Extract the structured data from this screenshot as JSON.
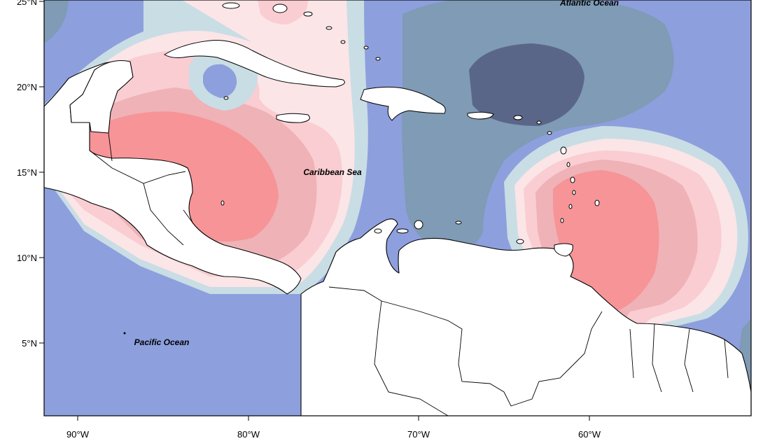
{
  "map": {
    "labels": {
      "atlantic": "Atlantic Ocean",
      "caribbean": "Caribbean Sea",
      "pacific": "Pacific Ocean"
    },
    "lat_ticks": [
      "25°N",
      "20°N",
      "15°N",
      "10°N",
      "5°N"
    ],
    "lon_ticks": [
      "90°W",
      "80°W",
      "70°W",
      "60°W"
    ],
    "extent": {
      "lon_min": -92,
      "lon_max": -51,
      "lat_min": 1,
      "lat_max": 25
    },
    "palette": {
      "deep_blue": "#5a6688",
      "slate": "#7f9bb5",
      "periwinkle": "#8e9fdd",
      "light_blue": "#c9dde5",
      "blush": "#fbe5e7",
      "pink": "#f9cdd1",
      "rose": "#efb2b6",
      "coral": "#f69497"
    }
  }
}
